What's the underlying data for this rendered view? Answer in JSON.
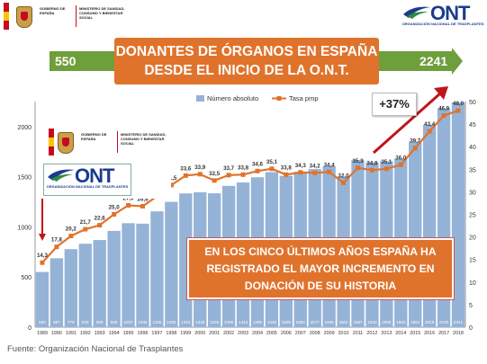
{
  "header": {
    "gov_logo": {
      "block": "GOBIERNO DE ESPAÑA",
      "ministry": "MINISTERIO DE SANIDAD, CONSUMO Y BIENESTAR SOCIAL"
    },
    "ont_logo": {
      "name": "ONT",
      "subtitle": "ORGANIZACIÓN NACIONAL DE TRASPLANTES"
    }
  },
  "title_lines": [
    "DONANTES DE ÓRGANOS EN ESPAÑA",
    "DESDE EL INICIO DE LA O.N.T."
  ],
  "start_value": "550",
  "end_value": "2241",
  "increase_label": "+37%",
  "message_lines": [
    "EN LOS CINCO ÚLTIMOS AÑOS ESPAÑA HA",
    "REGISTRADO EL MAYOR INCREMENTO EN",
    "DONACIÓN DE SU HISTORIA"
  ],
  "source": "Fuente: Organización Nacional de Trasplantes",
  "colors": {
    "bar": "#95b3d7",
    "line": "#e0732c",
    "title_bg": "#e0732c",
    "band": "#6f9e3d",
    "arrow": "#c0151c"
  },
  "chart_data": {
    "type": "bar",
    "categories": [
      "1989",
      "1990",
      "1991",
      "1992",
      "1993",
      "1994",
      "1995",
      "1996",
      "1997",
      "1998",
      "1999",
      "2000",
      "2001",
      "2002",
      "2003",
      "2004",
      "2005",
      "2006",
      "2007",
      "2008",
      "2009",
      "2010",
      "2011",
      "2012",
      "2013",
      "2014",
      "2015",
      "2016",
      "2017",
      "2018"
    ],
    "series": [
      {
        "name": "Número absoluto",
        "axis": "left",
        "type": "bar",
        "values": [
          550,
          687,
          778,
          832,
          869,
          960,
          1037,
          1032,
          1155,
          1250,
          1334,
          1345,
          1335,
          1409,
          1443,
          1495,
          1546,
          1509,
          1550,
          1577,
          1606,
          1502,
          1667,
          1643,
          1655,
          1682,
          1851,
          2019,
          2183,
          2241
        ]
      },
      {
        "name": "Tasa pmp",
        "axis": "right",
        "type": "line",
        "values": [
          14.3,
          17.8,
          20.2,
          21.7,
          22.6,
          25.0,
          27.0,
          26.8,
          29.0,
          31.5,
          33.6,
          33.9,
          32.5,
          33.7,
          33.8,
          34.6,
          35.1,
          33.8,
          34.3,
          34.2,
          34.4,
          32.0,
          35.3,
          34.8,
          35.1,
          36.0,
          39.7,
          43.4,
          46.9,
          48.0
        ],
        "labels": [
          "14,3",
          "17,8",
          "20,2",
          "21,7",
          "22,6",
          "25,0",
          "27,0",
          "26,8",
          "29,0",
          "31,5",
          "33,6",
          "33,9",
          "32,5",
          "33,7",
          "33,8",
          "34,6",
          "35,1",
          "33,8",
          "34,3",
          "34,2",
          "34,4",
          "32,0",
          "35,3",
          "34,8",
          "35,1",
          "36,0",
          "39,7",
          "43,4",
          "46,9",
          "48,0"
        ]
      }
    ],
    "y_left": {
      "min": 0,
      "max": 2250,
      "ticks": [
        0,
        500,
        1000,
        1500,
        2000
      ]
    },
    "y_right": {
      "min": 0,
      "max": 50,
      "ticks": [
        0,
        5,
        10,
        15,
        20,
        25,
        30,
        35,
        40,
        45,
        50
      ]
    },
    "legend": {
      "position": "top-center"
    },
    "grid": false
  }
}
